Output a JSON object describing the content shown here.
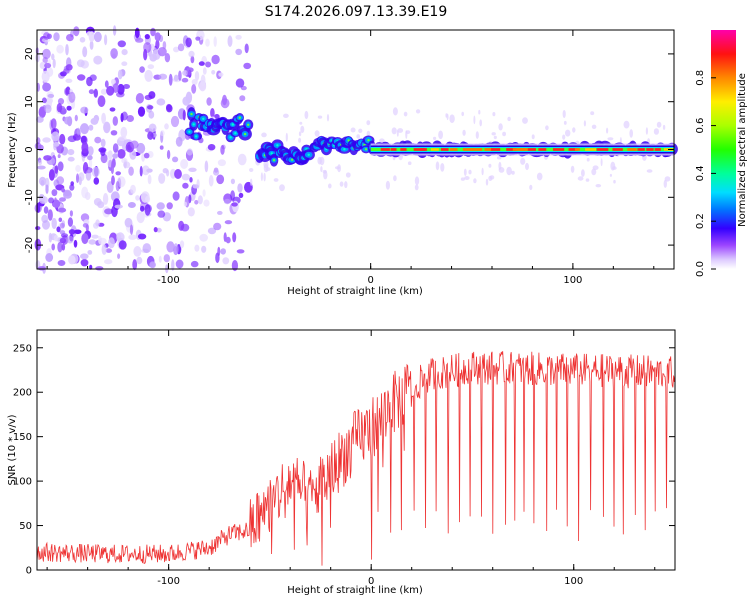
{
  "title": "S174.2026.097.13.39.E19",
  "chart_data": [
    {
      "type": "heatmap",
      "name": "spectrogram",
      "xlabel": "Height of straight line (km)",
      "ylabel": "Frequency (Hz)",
      "xlim": [
        -165,
        150
      ],
      "ylim": [
        -25,
        25
      ],
      "xticks": [
        -100,
        0,
        100
      ],
      "yticks": [
        -20,
        -10,
        0,
        10,
        20
      ],
      "ridge_frequency_hz": 0,
      "ridge_segments": [
        {
          "x": [
            -90,
            -60
          ],
          "freq_center": 5,
          "spread": 5
        },
        {
          "x": [
            -55,
            -30
          ],
          "freq_center": -1,
          "spread": 4
        },
        {
          "x": [
            -28,
            0
          ],
          "freq_center": 1,
          "spread": 2
        },
        {
          "x": [
            0,
            150
          ],
          "freq_center": 0,
          "spread": 1
        }
      ],
      "noise_region": {
        "x": [
          -165,
          -60
        ],
        "freq": [
          -25,
          25
        ]
      },
      "colorbar": {
        "label": "Normalized spectral amplitude",
        "range": [
          0.0,
          1.0
        ],
        "ticks": [
          "0.0",
          "0.2",
          "0.4",
          "0.6",
          "0.8"
        ],
        "tick_values": [
          0.0,
          0.2,
          0.4,
          0.6,
          0.8
        ],
        "colormap": "rainbow"
      }
    },
    {
      "type": "line",
      "name": "snr",
      "xlabel": "Height of straight line (km)",
      "ylabel": "SNR (10 * v/v)",
      "xlim": [
        -165,
        150
      ],
      "ylim": [
        0,
        270
      ],
      "xticks": [
        -100,
        0,
        100
      ],
      "yticks": [
        0,
        50,
        100,
        150,
        200,
        250
      ],
      "color": "#ee3333",
      "profile": [
        {
          "x": -165,
          "y": 20
        },
        {
          "x": -130,
          "y": 18
        },
        {
          "x": -100,
          "y": 18
        },
        {
          "x": -80,
          "y": 25
        },
        {
          "x": -70,
          "y": 40
        },
        {
          "x": -60,
          "y": 45
        },
        {
          "x": -50,
          "y": 75
        },
        {
          "x": -40,
          "y": 100
        },
        {
          "x": -30,
          "y": 80
        },
        {
          "x": -20,
          "y": 110
        },
        {
          "x": -10,
          "y": 140
        },
        {
          "x": 0,
          "y": 160
        },
        {
          "x": 10,
          "y": 185
        },
        {
          "x": 20,
          "y": 205
        },
        {
          "x": 30,
          "y": 220
        },
        {
          "x": 50,
          "y": 228
        },
        {
          "x": 100,
          "y": 225
        },
        {
          "x": 150,
          "y": 222
        }
      ],
      "noise_amplitude": 12,
      "dropout_spacing_km": 5.4,
      "dropout_start_km": 3,
      "dropout_min": 30
    }
  ]
}
